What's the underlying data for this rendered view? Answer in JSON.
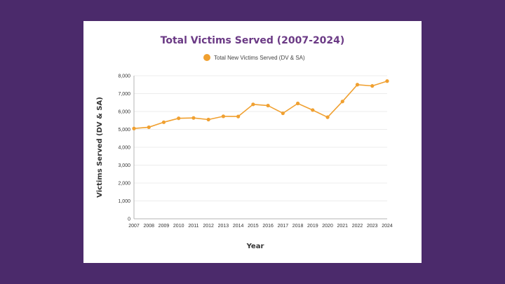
{
  "colors": {
    "background": "#4b2a6b",
    "card": "#ffffff",
    "title": "#6b3a85",
    "series": "#f0a030"
  },
  "chart_data": {
    "type": "line",
    "title": "Total Victims Served (2007-2024)",
    "xlabel": "Year",
    "ylabel": "Victims Served (DV & SA)",
    "ylim": [
      0,
      8000
    ],
    "yticks": [
      0,
      1000,
      2000,
      3000,
      4000,
      5000,
      6000,
      7000,
      8000
    ],
    "ytick_labels": [
      "0",
      "1,000",
      "2,000",
      "3,000",
      "4,000",
      "5,000",
      "6,000",
      "7,000",
      "8,000"
    ],
    "grid": true,
    "legend_position": "top-center",
    "x": [
      "2007",
      "2008",
      "2009",
      "2010",
      "2011",
      "2012",
      "2013",
      "2014",
      "2015",
      "2016",
      "2017",
      "2018",
      "2019",
      "2020",
      "2021",
      "2022",
      "2023",
      "2024"
    ],
    "series": [
      {
        "name": "Total New Victims Served (DV & SA)",
        "color": "#f0a030",
        "values": [
          5050,
          5120,
          5400,
          5620,
          5640,
          5550,
          5730,
          5720,
          6400,
          6330,
          5900,
          6450,
          6080,
          5680,
          6560,
          7500,
          7430,
          7700
        ]
      }
    ]
  }
}
